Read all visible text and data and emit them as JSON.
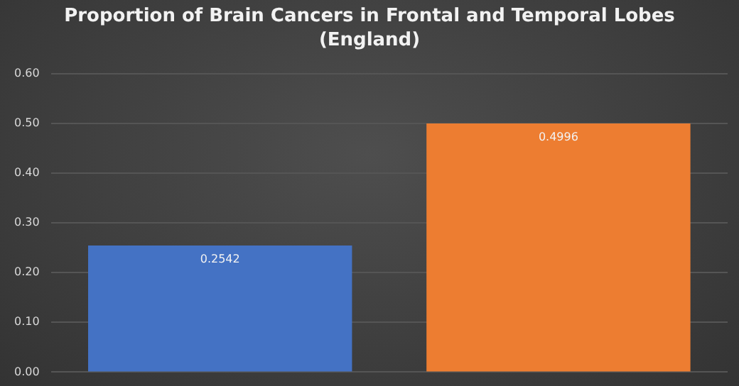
{
  "chart_data": {
    "type": "bar",
    "title": "Proportion of Brain Cancers in Frontal and Temporal Lobes\n(England)",
    "categories": [
      null,
      null
    ],
    "values": [
      0.2542,
      0.4996
    ],
    "colors": [
      "#4472c4",
      "#ed7d31"
    ],
    "ylim": [
      0,
      0.6
    ],
    "yticks": [
      {
        "value": 0,
        "label": "0.00"
      },
      {
        "value": 0.1,
        "label": "0.10"
      },
      {
        "value": 0.2,
        "label": "0.20"
      },
      {
        "value": 0.3,
        "label": "0.30"
      },
      {
        "value": 0.4,
        "label": "0.40"
      },
      {
        "value": 0.5,
        "label": "0.50"
      },
      {
        "value": 0.6,
        "label": "0.60"
      }
    ],
    "grid": "y",
    "data_labels": true,
    "tick_labels": "y"
  }
}
